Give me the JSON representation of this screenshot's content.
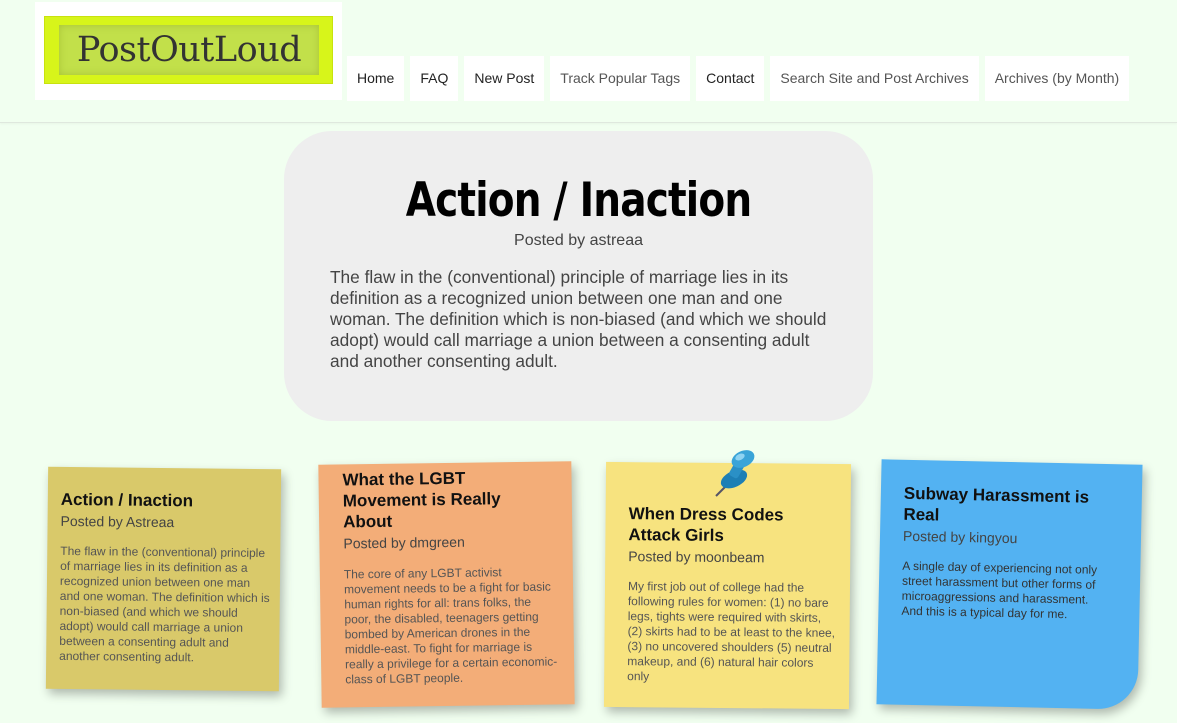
{
  "logo": {
    "text": "PostOutLoud"
  },
  "nav": {
    "items": [
      {
        "label": "Home"
      },
      {
        "label": "FAQ"
      },
      {
        "label": "New Post"
      },
      {
        "label": "Track Popular Tags"
      },
      {
        "label": "Contact"
      },
      {
        "label": "Search Site and Post Archives"
      },
      {
        "label": "Archives (by Month)"
      }
    ]
  },
  "featured": {
    "title": "Action / Inaction",
    "author": "Posted by astreaa",
    "body": "The flaw in the (conventional) principle of marriage lies in its definition as a recognized union between one man and one woman. The definition which is non-biased (and which we should adopt) would call marriage a union between a consenting adult and another consenting adult."
  },
  "cards": [
    {
      "title": "Action / Inaction",
      "author": "Posted by Astreaa",
      "body": "The flaw in the (conventional) principle of marriage lies in its definition as a recognized union between one man and one woman. The definition which is non-biased (and which we should adopt) would call marriage a union between a consenting adult and another consenting adult.",
      "color": "#d9c96a"
    },
    {
      "title": "What the LGBT Movement is Really About",
      "author": "Posted by dmgreen",
      "body": "The core of any LGBT activist movement needs to be a fight for basic human rights for all: trans folks, the poor, the disabled, teenagers getting bombed by American drones in the middle-east. To fight for marriage is really a privilege for a certain economic-class of LGBT people.",
      "color": "#f3ad78"
    },
    {
      "title": "When Dress Codes Attack Girls",
      "author": "Posted by moonbeam",
      "body": "My first job out of college had the following rules for women: (1) no bare legs, tights were required with skirts, (2) skirts had to be at least to the knee, (3) no uncovered shoulders (5) neutral makeup, and (6) natural hair colors only",
      "color": "#f7e37f"
    },
    {
      "title": "Subway Harassment is Real",
      "author": "Posted by kingyou",
      "body": "A single day of experiencing not only street harassment but other forms of microaggressions and harassment. And this is a typical day for me.",
      "color": "#53b2f2"
    }
  ],
  "icons": {
    "pin": "pushpin-icon"
  },
  "colors": {
    "background": "#f1fff0",
    "logo_bg": "#d7f51a",
    "featured_bg": "#eeeeee"
  }
}
